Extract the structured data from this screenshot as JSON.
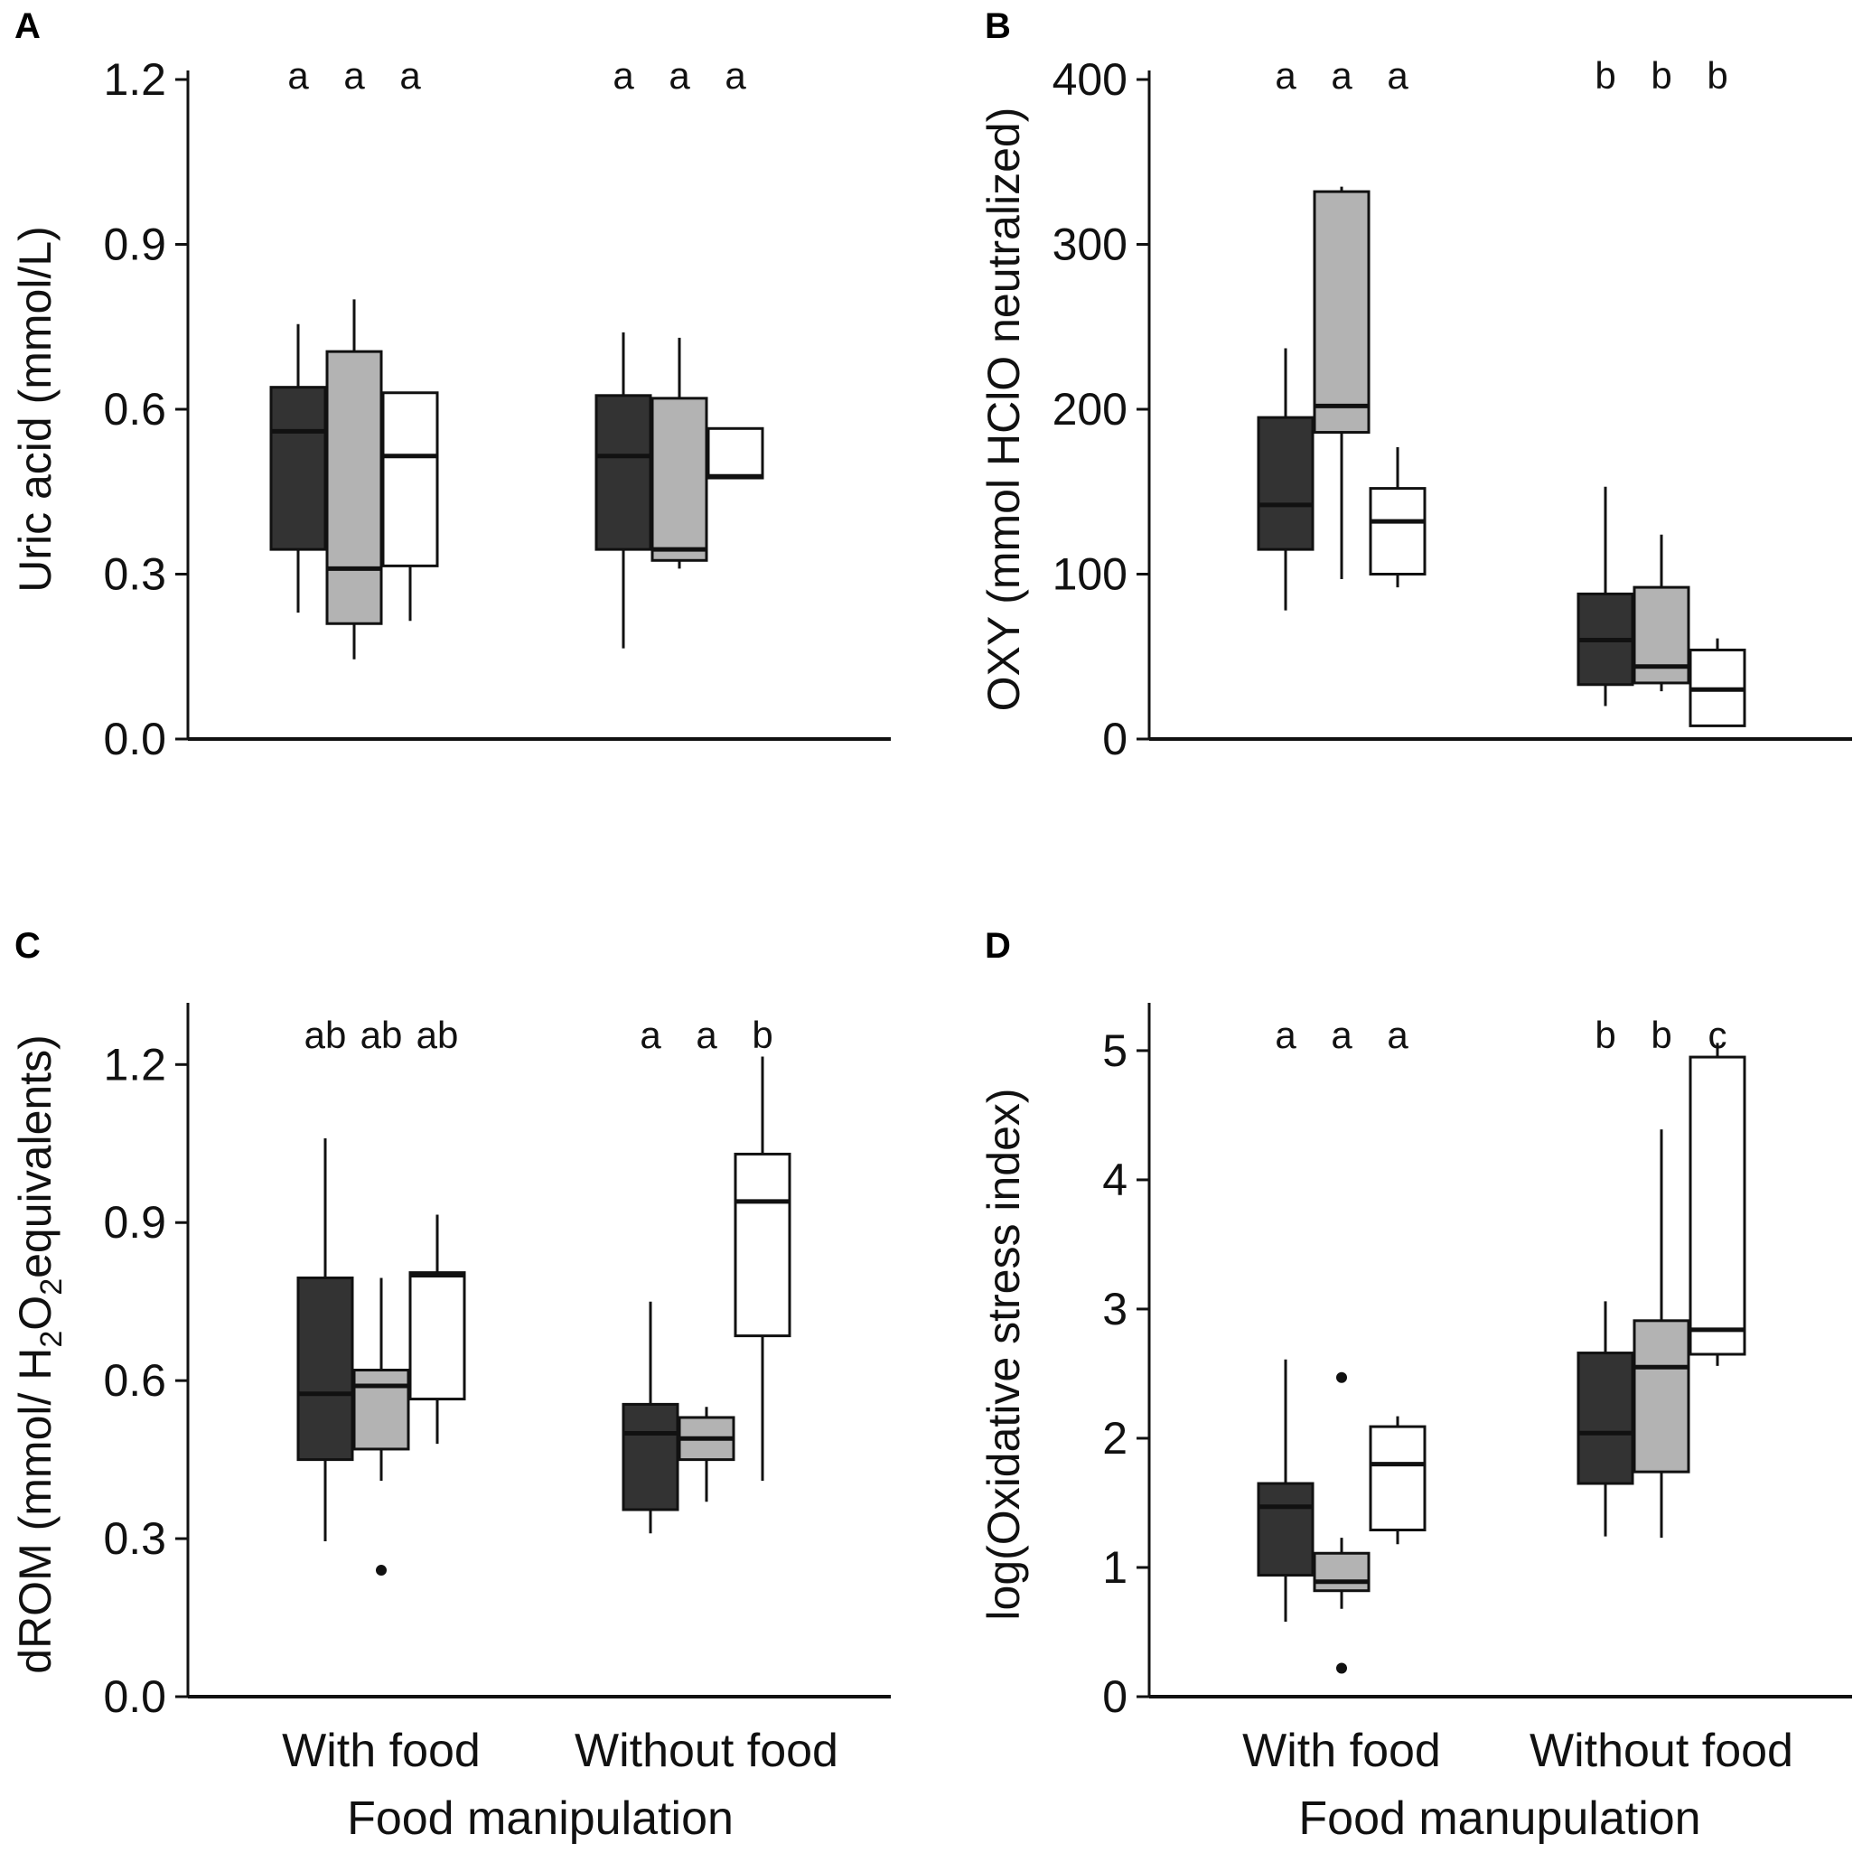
{
  "chart_data": [
    {
      "panel": "A",
      "type": "boxplot",
      "ylabel": "Uric acid (mmol/L)",
      "ylim": [
        0,
        1.2
      ],
      "yticks": [
        "0.0",
        "0.3",
        "0.6",
        "0.9",
        "1.2"
      ],
      "tick_values": [
        0,
        0.3,
        0.6,
        0.9,
        1.2
      ],
      "categories": [
        "With food",
        "Without food"
      ],
      "xlabel": "",
      "colors": [
        "#333333",
        "#b3b3b3",
        "#ffffff"
      ],
      "groups": [
        {
          "letters": [
            "a",
            "a",
            "a"
          ],
          "boxes": [
            {
              "whisker_low": 0.23,
              "q1": 0.345,
              "median": 0.56,
              "q3": 0.64,
              "whisker_high": 0.755,
              "outliers": []
            },
            {
              "whisker_low": 0.145,
              "q1": 0.21,
              "median": 0.31,
              "q3": 0.705,
              "whisker_high": 0.8,
              "outliers": []
            },
            {
              "whisker_low": 0.215,
              "q1": 0.315,
              "median": 0.515,
              "q3": 0.63,
              "whisker_high": 0.63,
              "outliers": []
            }
          ]
        },
        {
          "letters": [
            "a",
            "a",
            "a"
          ],
          "boxes": [
            {
              "whisker_low": 0.165,
              "q1": 0.345,
              "median": 0.515,
              "q3": 0.625,
              "whisker_high": 0.74,
              "outliers": []
            },
            {
              "whisker_low": 0.31,
              "q1": 0.325,
              "median": 0.345,
              "q3": 0.62,
              "whisker_high": 0.73,
              "outliers": []
            },
            {
              "whisker_low": 0.475,
              "q1": 0.475,
              "median": 0.478,
              "q3": 0.565,
              "whisker_high": 0.565,
              "outliers": []
            }
          ]
        }
      ]
    },
    {
      "panel": "B",
      "type": "boxplot",
      "ylabel": "OXY (mmol HClO neutralized)",
      "ylim": [
        0,
        400
      ],
      "yticks": [
        "0",
        "100",
        "200",
        "300",
        "400"
      ],
      "tick_values": [
        0,
        100,
        200,
        300,
        400
      ],
      "categories": [
        "With food",
        "Without food"
      ],
      "xlabel": "",
      "colors": [
        "#333333",
        "#b3b3b3",
        "#ffffff"
      ],
      "groups": [
        {
          "letters": [
            "a",
            "a",
            "a"
          ],
          "boxes": [
            {
              "whisker_low": 78,
              "q1": 115,
              "median": 142,
              "q3": 195,
              "whisker_high": 237,
              "outliers": []
            },
            {
              "whisker_low": 97,
              "q1": 186,
              "median": 202,
              "q3": 332,
              "whisker_high": 335,
              "outliers": []
            },
            {
              "whisker_low": 92,
              "q1": 100,
              "median": 132,
              "q3": 152,
              "whisker_high": 177,
              "outliers": []
            }
          ]
        },
        {
          "letters": [
            "b",
            "b",
            "b"
          ],
          "boxes": [
            {
              "whisker_low": 20,
              "q1": 33,
              "median": 60,
              "q3": 88,
              "whisker_high": 153,
              "outliers": []
            },
            {
              "whisker_low": 29,
              "q1": 34,
              "median": 44,
              "q3": 92,
              "whisker_high": 124,
              "outliers": []
            },
            {
              "whisker_low": 8,
              "q1": 8,
              "median": 30,
              "q3": 54,
              "whisker_high": 61,
              "outliers": []
            }
          ]
        }
      ]
    },
    {
      "panel": "C",
      "type": "boxplot",
      "ylabel_parts": {
        "before": "dROM (mmol/ H",
        "sub1": "2",
        "mid": "O",
        "sub2": "2",
        "after": "equivalents)"
      },
      "ylim": [
        0,
        1.3
      ],
      "yticks": [
        "0.0",
        "0.3",
        "0.6",
        "0.9",
        "1.2"
      ],
      "tick_values": [
        0,
        0.3,
        0.6,
        0.9,
        1.2
      ],
      "categories": [
        "With food",
        "Without food"
      ],
      "xlabel": "Food manipulation",
      "colors": [
        "#333333",
        "#b3b3b3",
        "#ffffff"
      ],
      "groups": [
        {
          "letters": [
            "ab",
            "ab",
            "ab"
          ],
          "boxes": [
            {
              "whisker_low": 0.295,
              "q1": 0.45,
              "median": 0.575,
              "q3": 0.795,
              "whisker_high": 1.06,
              "outliers": []
            },
            {
              "whisker_low": 0.41,
              "q1": 0.47,
              "median": 0.59,
              "q3": 0.62,
              "whisker_high": 0.795,
              "outliers": [
                0.24
              ]
            },
            {
              "whisker_low": 0.48,
              "q1": 0.565,
              "median": 0.8,
              "q3": 0.805,
              "whisker_high": 0.915,
              "outliers": []
            }
          ]
        },
        {
          "letters": [
            "a",
            "a",
            "b"
          ],
          "boxes": [
            {
              "whisker_low": 0.31,
              "q1": 0.355,
              "median": 0.5,
              "q3": 0.555,
              "whisker_high": 0.75,
              "outliers": []
            },
            {
              "whisker_low": 0.37,
              "q1": 0.45,
              "median": 0.49,
              "q3": 0.53,
              "whisker_high": 0.55,
              "outliers": []
            },
            {
              "whisker_low": 0.41,
              "q1": 0.685,
              "median": 0.94,
              "q3": 1.03,
              "whisker_high": 1.215,
              "outliers": []
            }
          ]
        }
      ]
    },
    {
      "panel": "D",
      "type": "boxplot",
      "ylabel": "log(Oxidative stress index)",
      "ylim": [
        0,
        5.3
      ],
      "yticks": [
        "0",
        "1",
        "2",
        "3",
        "4",
        "5"
      ],
      "tick_values": [
        0,
        1,
        2,
        3,
        4,
        5
      ],
      "categories": [
        "With food",
        "Without food"
      ],
      "xlabel": "Food manupulation",
      "colors": [
        "#333333",
        "#b3b3b3",
        "#ffffff"
      ],
      "groups": [
        {
          "letters": [
            "a",
            "a",
            "a"
          ],
          "boxes": [
            {
              "whisker_low": 0.58,
              "q1": 0.94,
              "median": 1.47,
              "q3": 1.65,
              "whisker_high": 2.61,
              "outliers": []
            },
            {
              "whisker_low": 0.68,
              "q1": 0.82,
              "median": 0.89,
              "q3": 1.11,
              "whisker_high": 1.23,
              "outliers": [
                2.47,
                0.22
              ]
            },
            {
              "whisker_low": 1.18,
              "q1": 1.29,
              "median": 1.8,
              "q3": 2.09,
              "whisker_high": 2.17,
              "outliers": []
            }
          ]
        },
        {
          "letters": [
            "b",
            "b",
            "c"
          ],
          "boxes": [
            {
              "whisker_low": 1.24,
              "q1": 1.65,
              "median": 2.04,
              "q3": 2.66,
              "whisker_high": 3.06,
              "outliers": []
            },
            {
              "whisker_low": 1.23,
              "q1": 1.74,
              "median": 2.55,
              "q3": 2.91,
              "whisker_high": 4.39,
              "outliers": []
            },
            {
              "whisker_low": 2.56,
              "q1": 2.65,
              "median": 2.84,
              "q3": 4.95,
              "whisker_high": 5.06,
              "outliers": []
            }
          ]
        }
      ]
    }
  ]
}
